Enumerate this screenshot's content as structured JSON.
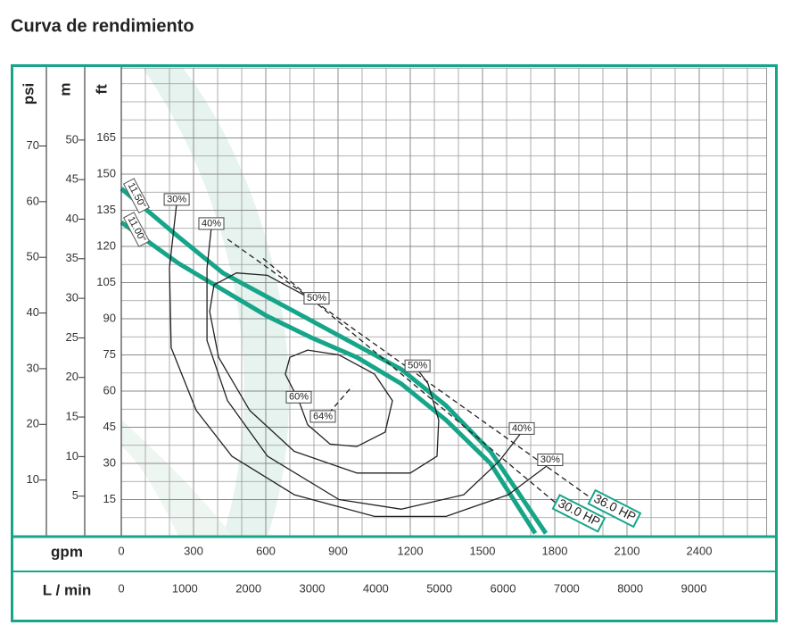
{
  "chart_data": {
    "type": "line",
    "title": "Curva de rendimiento",
    "x_label": "gpm",
    "xlim": [
      0,
      2680
    ],
    "xticks": [
      0,
      300,
      600,
      900,
      1200,
      1500,
      1800,
      2100,
      2400
    ],
    "x2_label": "L / min",
    "x2lim": [
      0,
      10144
    ],
    "x2ticks": [
      0,
      1000,
      2000,
      3000,
      4000,
      5000,
      6000,
      7000,
      8000,
      9000
    ],
    "y_label": "ft",
    "ylim": [
      0,
      194
    ],
    "yticks": [
      15,
      30,
      45,
      60,
      75,
      90,
      105,
      120,
      135,
      150,
      165
    ],
    "y2_label": "m",
    "y2lim": [
      0,
      59.1
    ],
    "y2ticks": [
      5,
      10,
      15,
      20,
      25,
      30,
      35,
      40,
      45,
      50
    ],
    "y3_label": "psi",
    "y3lim": [
      0,
      84
    ],
    "y3ticks": [
      10,
      20,
      30,
      40,
      50,
      60,
      70
    ],
    "grid": true,
    "series": [
      {
        "name": "11.50\"",
        "kind": "pump",
        "color": "#17a589",
        "x": [
          0,
          237,
          422,
          607,
          793,
          978,
          1163,
          1348,
          1533,
          1763
        ],
        "values": [
          144,
          124,
          109,
          99,
          89,
          79,
          69,
          54,
          35,
          1
        ]
      },
      {
        "name": "11.00\"",
        "kind": "pump",
        "color": "#17a589",
        "x": [
          0,
          237,
          422,
          607,
          793,
          978,
          1163,
          1348,
          1533,
          1719
        ],
        "values": [
          130,
          113,
          102,
          91,
          82,
          74,
          63,
          48,
          30,
          1
        ]
      },
      {
        "name": "30%",
        "kind": "efficiency",
        "color": "#222222",
        "x": [
          230,
          200,
          207,
          311,
          459,
          718,
          1052,
          1348,
          1607,
          1781
        ],
        "values": [
          138,
          111,
          78,
          52,
          33,
          17,
          8,
          8,
          17,
          30
        ]
      },
      {
        "name": "40%",
        "kind": "efficiency",
        "color": "#222222",
        "x": [
          374,
          356,
          356,
          441,
          607,
          904,
          1163,
          1422,
          1570,
          1663
        ],
        "values": [
          128,
          111,
          81,
          56,
          33,
          15,
          11,
          17,
          31,
          43
        ]
      },
      {
        "name": "50%",
        "kind": "efficiency",
        "color": "#222222",
        "x": [
          811,
          607,
          478,
          385,
          367,
          404,
          533,
          718,
          978,
          1200,
          1311,
          1318,
          1274,
          1230
        ],
        "values": [
          97,
          108,
          109,
          104,
          93,
          74,
          52,
          35,
          26,
          26,
          33,
          48,
          63,
          69
        ]
      },
      {
        "name": "60%",
        "kind": "efficiency",
        "color": "#222222",
        "x": [
          737,
          681,
          700,
          774,
          904,
          1052,
          1126,
          1096,
          978,
          867,
          774,
          737
        ],
        "values": [
          56,
          67,
          74,
          77,
          75,
          67,
          56,
          43,
          37,
          38,
          46,
          56
        ]
      },
      {
        "name": "64%",
        "kind": "efficiency",
        "dashed": true,
        "color": "#222222",
        "x": [
          837,
          959
        ],
        "values": [
          48,
          62
        ]
      },
      {
        "name": "36.0 HP",
        "kind": "power",
        "dashed": true,
        "color": "#222222",
        "x": [
          441,
          1959
        ],
        "values": [
          123,
          15
        ]
      },
      {
        "name": "30.0 HP",
        "kind": "power",
        "dashed": true,
        "color": "#222222",
        "x": [
          589,
          1811
        ],
        "values": [
          115,
          13
        ]
      }
    ]
  }
}
